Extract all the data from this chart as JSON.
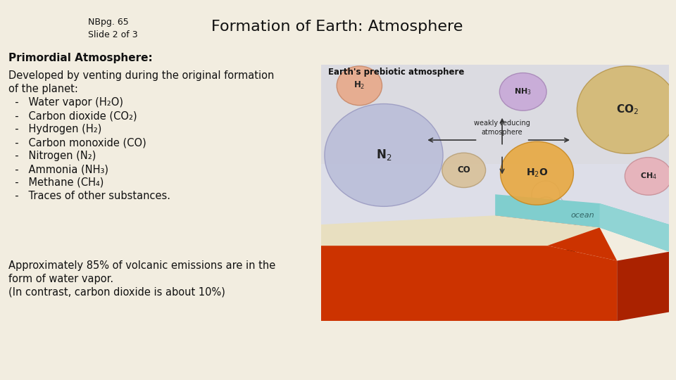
{
  "bg_color": "#f2ede0",
  "title": "Formation of Earth: Atmosphere",
  "title_fontsize": 16,
  "nb_text": "NBpg. 65\nSlide 2 of 3",
  "nb_fontsize": 9,
  "section_title": "Primordial Atmosphere:",
  "section_fontsize": 11,
  "body_lines": [
    "Developed by venting during the original formation",
    "of the planet:",
    "  -   Water vapor (H₂O)",
    "  -   Carbon dioxide (CO₂)",
    "  -   Hydrogen (H₂)",
    "  -   Carbon monoxide (CO)",
    "  -   Nitrogen (N₂)",
    "  -   Ammonia (NH₃)",
    "  -   Methane (CH₄)",
    "  -   Traces of other substances."
  ],
  "body_fontsize": 10.5,
  "footer_lines": [
    "Approximately 85% of volcanic emissions are in the",
    "form of water vapor.",
    "(In contrast, carbon dioxide is about 10%)"
  ],
  "footer_fontsize": 10.5
}
